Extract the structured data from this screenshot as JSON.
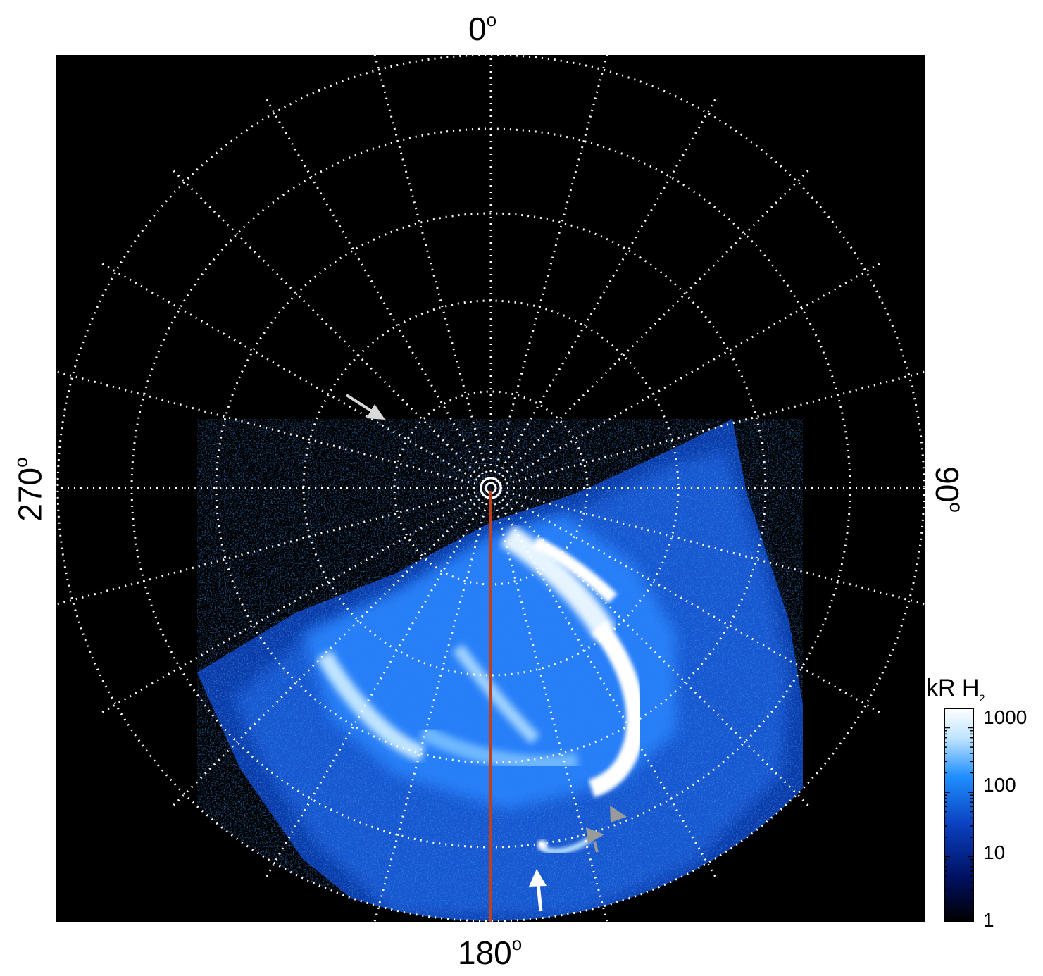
{
  "plot": {
    "labels": {
      "top": "0",
      "bottom": "180",
      "left": "270",
      "right": "90",
      "degree_symbol": "o"
    },
    "background": "#000000",
    "grid_color": "#ffffff",
    "meridian_color": "#c0401a",
    "arrows": [
      {
        "color": "#d9d9d9",
        "icon": "arrow-icon"
      },
      {
        "color": "#ffffff",
        "icon": "arrow-icon"
      },
      {
        "color": "#9a9a9a",
        "icon": "arrowhead-icon"
      },
      {
        "color": "#9a9a9a",
        "icon": "arrowhead-icon"
      }
    ]
  },
  "colorbar": {
    "title": "kR H",
    "title_subscript": "2",
    "ticks": [
      "1000",
      "100",
      "10",
      "1"
    ],
    "scale": "log",
    "range": [
      1,
      2000
    ],
    "colors": [
      "#000000",
      "#001060",
      "#0a3fbf",
      "#1f8fff",
      "#bfe4ff",
      "#ffffff"
    ]
  }
}
